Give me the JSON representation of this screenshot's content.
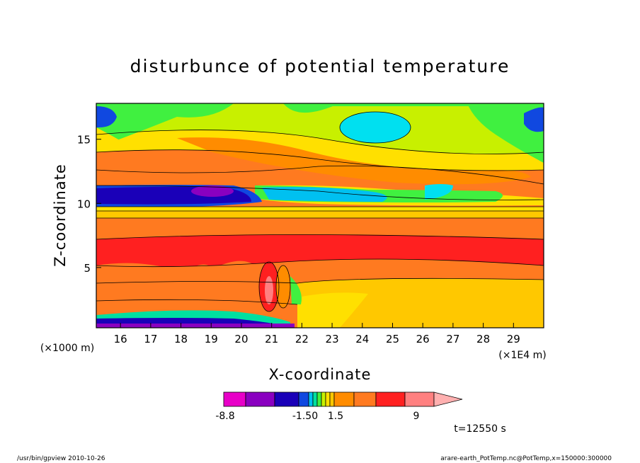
{
  "chart_data": {
    "type": "heatmap",
    "title": "disturbunce of potential temperature",
    "xlabel": "X-coordinate",
    "ylabel": "Z-coordinate",
    "x_unit_left": "(×1000 m)",
    "x_unit_right": "(×1E4 m)",
    "x_ticks": [
      "16",
      "17",
      "18",
      "19",
      "20",
      "21",
      "22",
      "23",
      "24",
      "25",
      "26",
      "27",
      "28",
      "29"
    ],
    "y_ticks": [
      "5",
      "10",
      "15"
    ],
    "xlim": [
      15.2,
      30.0
    ],
    "ylim": [
      0.3,
      17.8
    ],
    "colorbar": {
      "labels": [
        "-8.8",
        "-1.50",
        "1.5",
        "9"
      ],
      "colors": [
        "#e800c8",
        "#8a00c0",
        "#1a00b8",
        "#1048e0",
        "#00c0f0",
        "#00e0a0",
        "#40f040",
        "#c8f000",
        "#ffe000",
        "#ffc800",
        "#ff8c00",
        "#ff7a20",
        "#ff2020",
        "#ff8080",
        "#ffb0b0"
      ]
    },
    "time_label": "t=12550 s"
  },
  "footer": {
    "left": "/usr/bin/gpview   2010-10-26",
    "right": "arare-earth_PotTemp.nc@PotTemp,x=150000:300000"
  }
}
